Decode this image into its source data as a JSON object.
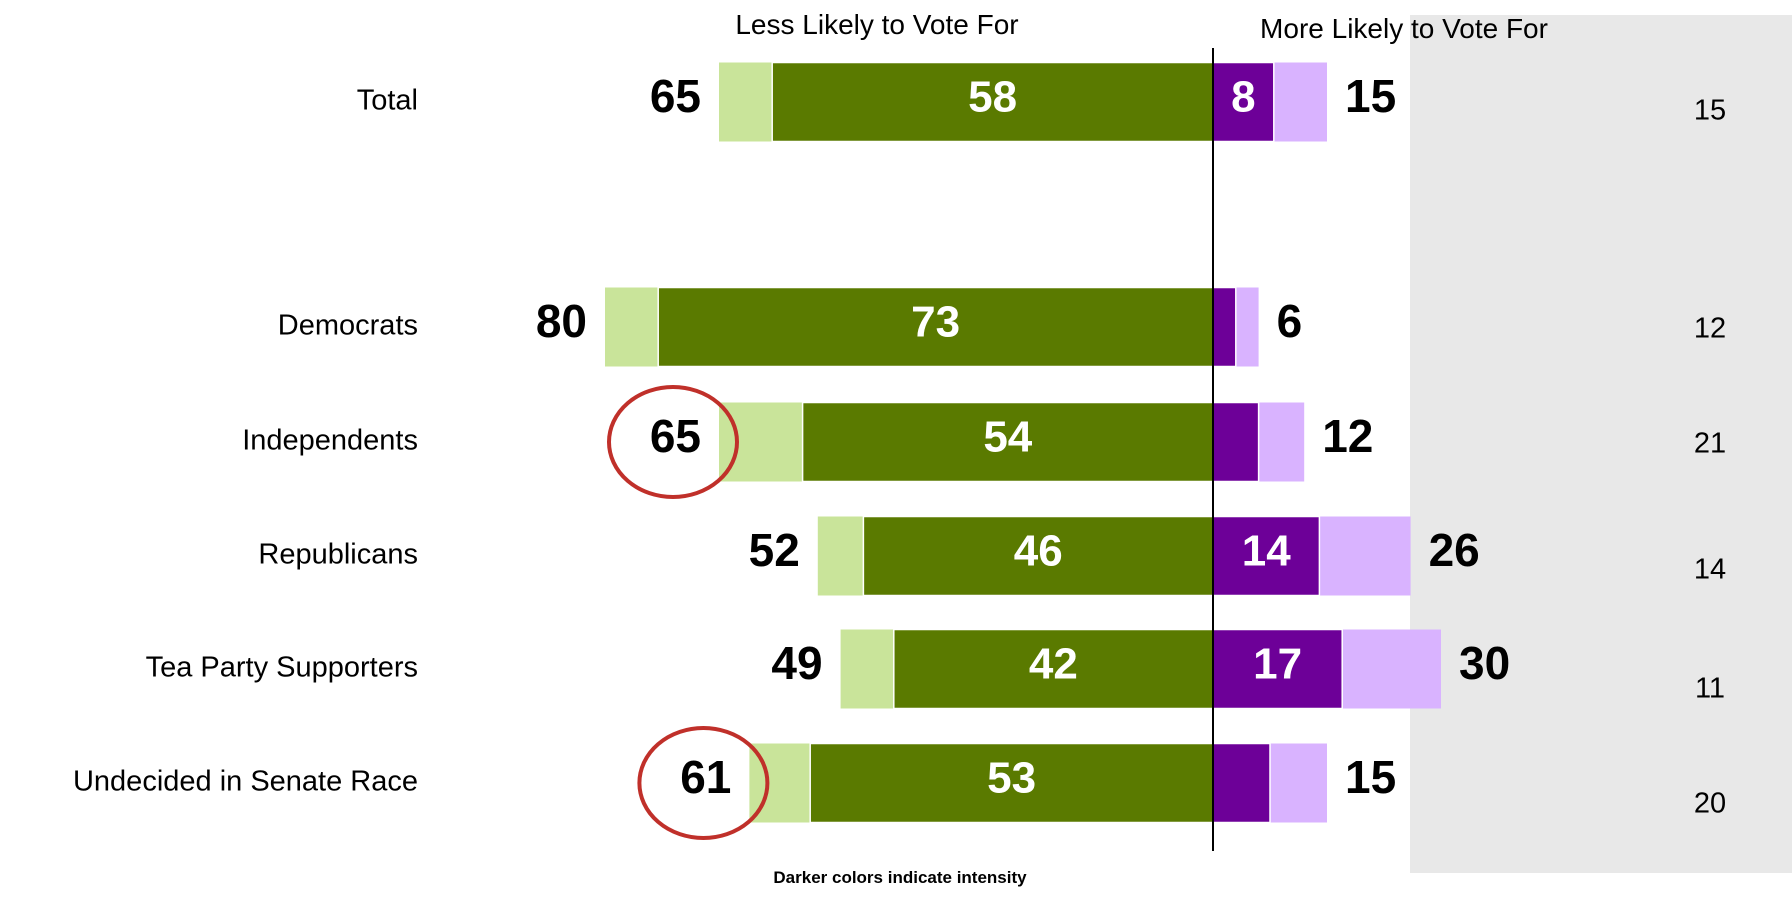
{
  "header": {
    "less_label": "Less Likely to Vote For",
    "more_label": "More Likely to Vote For"
  },
  "footnote": "Darker colors indicate intensity",
  "colors": {
    "less_total": "#c9e49a",
    "less_intense": "#5a7a00",
    "more_intense": "#6d0098",
    "more_total": "#d9b3ff",
    "side_panel": "#e8e8e8",
    "highlight_circle": "#c0302a"
  },
  "chart_data": {
    "type": "bar",
    "orientation": "horizontal-diverging",
    "categories": [
      "Total",
      "Democrats",
      "Independents",
      "Republicans",
      "Tea Party Supporters",
      "Undecided in Senate Race"
    ],
    "series": [
      {
        "name": "Less Likely to Vote For",
        "values": [
          65,
          80,
          65,
          52,
          49,
          61
        ]
      },
      {
        "values": [
          58,
          73,
          54,
          46,
          42,
          53
        ]
      },
      {
        "values": [
          8,
          null,
          null,
          14,
          17,
          null
        ]
      },
      {
        "name": "More Likely to Vote For",
        "values": [
          15,
          6,
          12,
          26,
          30,
          15
        ]
      }
    ],
    "side_column_values": [
      15,
      12,
      21,
      14,
      11,
      20
    ],
    "highlighted": [
      "Independents",
      "Undecided in Senate Race"
    ]
  }
}
